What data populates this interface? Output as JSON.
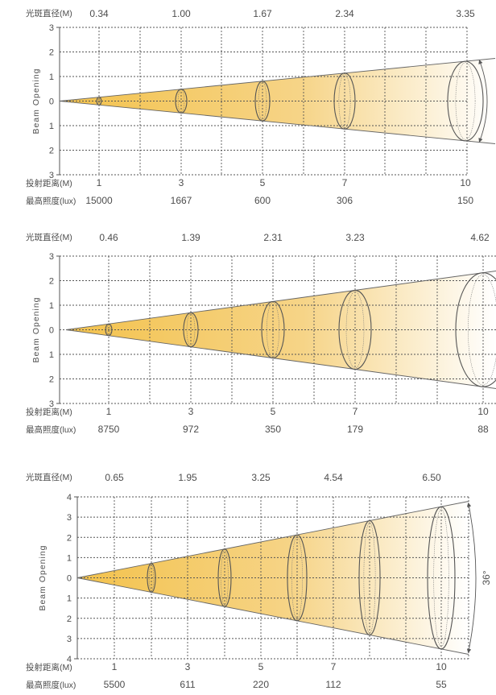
{
  "charts": [
    {
      "diameter_label": "光斑直径(M)",
      "diameters": [
        "0.34",
        "1.00",
        "1.67",
        "2.34",
        "3.35"
      ],
      "ylabel": "Beam Opening",
      "y_ticks": [
        "3",
        "2",
        "1",
        "0",
        "1",
        "2",
        "3"
      ],
      "distance_label": "投射距离(M)",
      "distances": [
        "1",
        "3",
        "5",
        "7",
        "10"
      ],
      "lux_label": "最高照度(lux)",
      "lux": [
        "15000",
        "1667",
        "600",
        "306",
        "150"
      ],
      "angle_label": ""
    },
    {
      "diameter_label": "光斑直径(M)",
      "diameters": [
        "0.46",
        "1.39",
        "2.31",
        "3.23",
        "4.62"
      ],
      "ylabel": "Beam Opening",
      "y_ticks": [
        "3",
        "2",
        "1",
        "0",
        "1",
        "2",
        "3"
      ],
      "distance_label": "投射距离(M)",
      "distances": [
        "1",
        "3",
        "5",
        "7",
        "10"
      ],
      "lux_label": "最高照度(lux)",
      "lux": [
        "8750",
        "972",
        "350",
        "179",
        "88"
      ],
      "angle_label": ""
    },
    {
      "diameter_label": "光斑直径(M)",
      "diameters": [
        "0.65",
        "1.95",
        "3.25",
        "4.54",
        "6.50"
      ],
      "ylabel": "Beam Opening",
      "y_ticks": [
        "4",
        "3",
        "2",
        "1",
        "0",
        "1",
        "2",
        "3",
        "4"
      ],
      "distance_label": "投射距离(M)",
      "distances": [
        "1",
        "3",
        "5",
        "7",
        "10"
      ],
      "lux_label": "最高照度(lux)",
      "lux": [
        "5500",
        "611",
        "220",
        "112",
        "55"
      ],
      "angle_label": "36°"
    }
  ],
  "colors": {
    "beam_warm": "#f3c24c",
    "beam_fade": "#ffffff",
    "ink": "#4d4d4d"
  }
}
